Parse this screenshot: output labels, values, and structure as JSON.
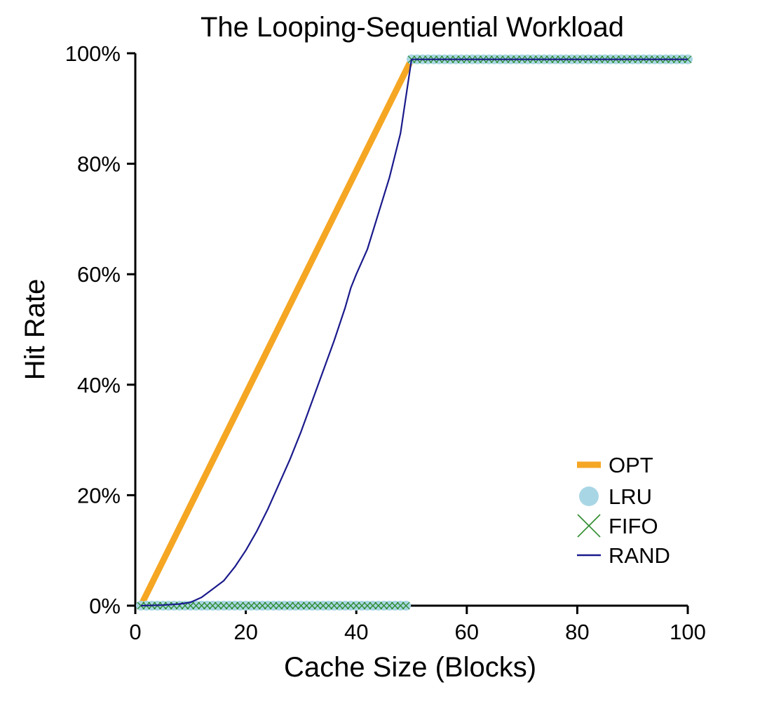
{
  "chart_data": {
    "type": "line",
    "title": "The Looping-Sequential Workload",
    "xlabel": "Cache Size (Blocks)",
    "ylabel": "Hit Rate",
    "xlim": [
      0,
      100
    ],
    "ylim": [
      0,
      100
    ],
    "xticks": [
      "0",
      "20",
      "40",
      "60",
      "80",
      "100"
    ],
    "yticks": [
      "0%",
      "20%",
      "40%",
      "60%",
      "80%",
      "100%"
    ],
    "grid": false,
    "legend_position": "bottom-right",
    "series": [
      {
        "name": "OPT",
        "style": "thick-line",
        "color": "#f5a623",
        "x": [
          1,
          50,
          100
        ],
        "y": [
          0,
          98.9,
          98.9
        ]
      },
      {
        "name": "LRU",
        "style": "circle-markers",
        "color": "#a9d6e5",
        "x_ranges": [
          [
            1,
            49,
            0
          ],
          [
            50,
            100,
            98.9
          ]
        ]
      },
      {
        "name": "FIFO",
        "style": "x-markers",
        "color": "#2e8b2e",
        "x_ranges": [
          [
            1,
            49,
            0
          ],
          [
            50,
            100,
            98.9
          ]
        ]
      },
      {
        "name": "RAND",
        "style": "thin-line",
        "color": "#1a1a8c",
        "x": [
          1,
          5,
          8,
          10,
          12,
          14,
          16,
          18,
          20,
          22,
          24,
          26,
          28,
          30,
          32,
          34,
          36,
          38,
          39,
          40,
          42,
          44,
          46,
          48,
          50,
          100
        ],
        "y": [
          0,
          0.1,
          0.3,
          0.6,
          1.5,
          3,
          4.5,
          7,
          10,
          13.5,
          17.5,
          22,
          26.5,
          31.5,
          37,
          42.5,
          48,
          54,
          57.5,
          60,
          64.5,
          71,
          77.5,
          85.5,
          98.9,
          98.9
        ]
      }
    ]
  }
}
